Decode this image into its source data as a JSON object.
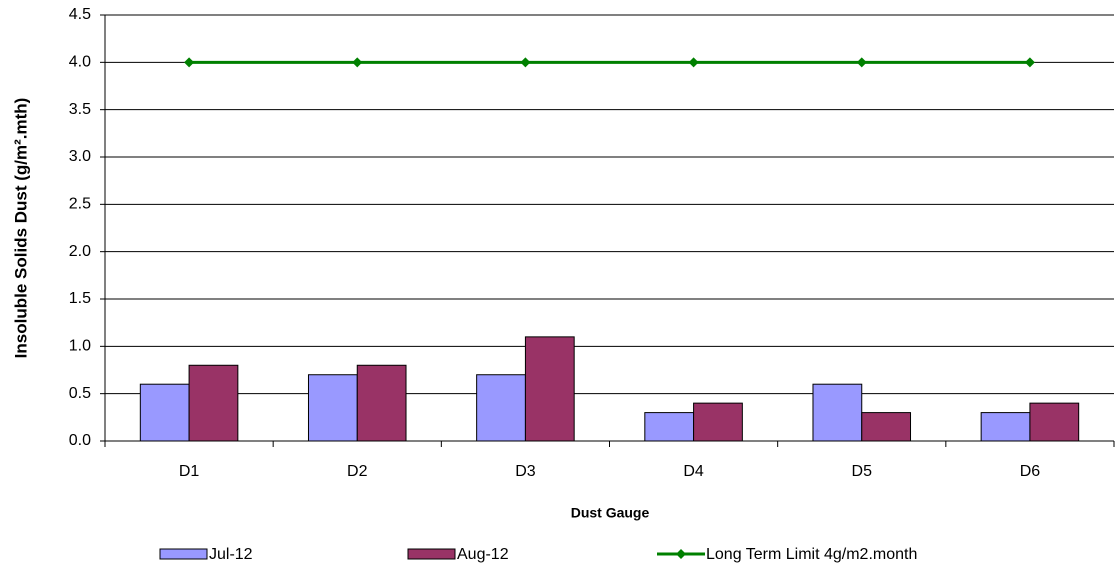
{
  "chart_data": {
    "type": "bar",
    "y_label": "Insoluble Solids Dust (g/m².mth)",
    "x_label": "Dust Gauge",
    "categories": [
      "D1",
      "D2",
      "D3",
      "D4",
      "D5",
      "D6"
    ],
    "series": [
      {
        "name": "Jul-12",
        "color": "#9999ff",
        "values": [
          0.6,
          0.7,
          0.7,
          0.3,
          0.6,
          0.3
        ]
      },
      {
        "name": "Aug-12",
        "color": "#993366",
        "values": [
          0.8,
          0.8,
          1.1,
          0.4,
          0.3,
          0.4
        ]
      },
      {
        "name": "Long Term Limit 4g/m2.month",
        "color": "#008000",
        "type": "line",
        "values": [
          4,
          4,
          4,
          4,
          4,
          4
        ]
      }
    ],
    "ylim": [
      0,
      4.5
    ],
    "yticks": [
      {
        "value": 0,
        "label": "0.0"
      },
      0.5,
      {
        "value": 1,
        "label": "1.0"
      },
      1.5,
      {
        "value": 2,
        "label": "2.0"
      },
      2.5,
      {
        "value": 3,
        "label": "3.0"
      },
      3.5,
      {
        "value": 4,
        "label": "4.0"
      },
      4.5
    ],
    "grid": true,
    "legend": "bottom"
  }
}
